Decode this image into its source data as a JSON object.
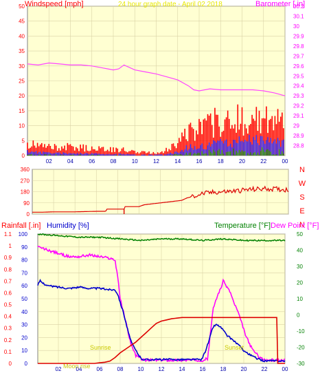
{
  "header": {
    "windspeed_label": "Windspeed [mph]",
    "title": "24 hour graph date - April 02 2018",
    "barometer_label": "Barometer [.in]"
  },
  "lower_header": {
    "rainfall_label": "Rainfall [.in]",
    "humidity_label": "Humidity [%]",
    "temperature_label": "Temperature [°F]",
    "dewpoint_label": "Dew Point [°F]"
  },
  "annotations": {
    "sunrise": "Sunrise",
    "moonrise": "Moon rise",
    "sunset": "Sunset"
  },
  "colors": {
    "background": "#ffffff",
    "plot_bg": "#ffffd2",
    "grid": "#d9d2a6",
    "wind": "#ff0000",
    "gust_blue": "#1010ff",
    "gust_green": "#008000",
    "barometer": "#ff44ff",
    "direction": "#dd0000",
    "rain": "#dd0000",
    "humidity": "#0000cc",
    "temperature": "#008000",
    "dewpoint": "#ff00ff",
    "axis_left": "#ff0000",
    "axis_right_magenta": "#ff00ff",
    "axis_right_green": "#008000",
    "xtick": "#0000aa",
    "title": "#e8e800"
  },
  "chart_data": [
    {
      "type": "line",
      "title": "24 hour graph date - April 02 2018",
      "xticks": [
        "02",
        "04",
        "06",
        "08",
        "10",
        "12",
        "14",
        "16",
        "18",
        "20",
        "22",
        "00"
      ],
      "left_axis": {
        "label": "Windspeed [mph]",
        "ylim": [
          0,
          50
        ],
        "ticks": [
          0,
          5,
          10,
          15,
          20,
          25,
          30,
          35,
          40,
          45,
          50
        ]
      },
      "right_axis": {
        "label": "Barometer [.in]",
        "ylim": [
          28.7,
          30.2
        ],
        "ticks": [
          "28.8",
          "28.9",
          "29",
          "29.1",
          "29.2",
          "29.3",
          "29.4",
          "29.5",
          "29.6",
          "29.7",
          "29.8",
          "29.9",
          "30",
          "30.1",
          "30.2"
        ]
      },
      "barometer": {
        "x": [
          0,
          1,
          2,
          3,
          4,
          5,
          6,
          7,
          7.5,
          8,
          8.5,
          9,
          10,
          11,
          12,
          13,
          14,
          15,
          15.5,
          16,
          17,
          18,
          19,
          20,
          21,
          22,
          23,
          24
        ],
        "y": [
          29.62,
          29.61,
          29.63,
          29.62,
          29.61,
          29.61,
          29.6,
          29.58,
          29.57,
          29.56,
          29.57,
          29.61,
          29.56,
          29.54,
          29.52,
          29.49,
          29.46,
          29.4,
          29.36,
          29.35,
          29.37,
          29.36,
          29.36,
          29.36,
          29.36,
          29.35,
          29.33,
          29.3
        ]
      },
      "wind_avg_profile": {
        "x": [
          0,
          2,
          4,
          6,
          7,
          8,
          9,
          10,
          11,
          12,
          13,
          14,
          15,
          16,
          17,
          18,
          19,
          20,
          21,
          22,
          23,
          24
        ],
        "y": [
          1.5,
          1,
          0.8,
          0.8,
          0.6,
          0.5,
          0.6,
          0.4,
          0.3,
          0.3,
          0.5,
          1.5,
          3,
          3.5,
          4,
          4.5,
          5,
          5,
          5.5,
          5.5,
          5,
          4.5
        ]
      },
      "wind_gust_profile": {
        "x": [
          0,
          2,
          4,
          6,
          7,
          8,
          9,
          10,
          11,
          12,
          13,
          14,
          15,
          16,
          17,
          18,
          19,
          20,
          21,
          22,
          23,
          24
        ],
        "y": [
          4,
          3,
          3,
          2.5,
          2.5,
          2,
          2,
          1.5,
          1,
          1,
          2,
          5,
          8,
          9,
          11,
          12,
          13,
          13,
          13,
          12,
          12,
          12
        ]
      }
    },
    {
      "type": "line",
      "title": "",
      "left_axis": {
        "ylim": [
          0,
          360
        ],
        "ticks": [
          0,
          90,
          180,
          270,
          360
        ]
      },
      "right_axis": {
        "ticks": [
          "N",
          "W",
          "S",
          "E",
          "N"
        ]
      },
      "direction": {
        "x": [
          0,
          1,
          2,
          4,
          6,
          6.8,
          6.9,
          7,
          8,
          8.6,
          8.7,
          9,
          10,
          10.5,
          11,
          12,
          13,
          14,
          14.5,
          15,
          16,
          17,
          18,
          19,
          20,
          21,
          22,
          23,
          24
        ],
        "y": [
          15,
          15,
          18,
          18,
          22,
          22,
          25,
          40,
          40,
          40,
          60,
          60,
          60,
          75,
          80,
          90,
          100,
          110,
          130,
          140,
          165,
          175,
          180,
          185,
          195,
          200,
          205,
          200,
          195
        ]
      }
    },
    {
      "type": "line",
      "title": "",
      "rain_axis": {
        "label": "Rainfall [.in]",
        "ylim": [
          0,
          1.1
        ],
        "ticks": [
          "0",
          "0.1",
          "0.2",
          "0.3",
          "0.4",
          "0.5",
          "0.6",
          "0.7",
          "0.8",
          "0.9",
          "1",
          "1.1"
        ]
      },
      "humidity_axis": {
        "label": "Humidity [%]",
        "ylim": [
          0,
          100
        ],
        "ticks": [
          0,
          10,
          20,
          30,
          40,
          50,
          60,
          70,
          80,
          90,
          100
        ]
      },
      "temp_axis": {
        "label": "Temperature [°F]",
        "ylim": [
          -30,
          50
        ],
        "ticks": [
          -30,
          -20,
          -10,
          0,
          10,
          20,
          30,
          40,
          50
        ]
      },
      "temperature": {
        "x": [
          0,
          2,
          4,
          6,
          8,
          10,
          12,
          14,
          16,
          18,
          20,
          22,
          24
        ],
        "y": [
          50,
          49,
          48,
          48,
          47,
          46,
          47,
          47,
          46,
          47,
          46,
          46,
          46
        ]
      },
      "dewpoint": {
        "x": [
          0,
          0.5,
          1,
          2,
          3,
          4,
          5,
          6,
          7,
          7.5,
          7.8,
          8,
          8.5,
          9,
          9.5,
          10,
          10.3,
          10.6,
          11,
          12,
          13,
          14,
          15,
          15.6,
          16,
          16.5,
          17,
          17.5,
          17.8,
          18,
          18.3,
          18.7,
          19,
          19.3,
          19.8,
          20.2,
          20.8,
          21.5,
          22,
          22.5,
          23,
          23.5,
          24
        ],
        "y": [
          42,
          41,
          40,
          38,
          36,
          36,
          37,
          36,
          35,
          34,
          22,
          10,
          -3,
          -17,
          -25,
          -27,
          -28,
          -28,
          -28,
          -28,
          -28,
          -28,
          -28,
          -28,
          -28,
          -27,
          3,
          13,
          17,
          21,
          18,
          14,
          8,
          4,
          -5,
          -13,
          -21,
          -26,
          -28,
          -28,
          -28,
          -28,
          -28
        ]
      },
      "humidity": {
        "x": [
          0,
          0.2,
          0.5,
          1,
          2,
          3,
          4,
          5,
          6,
          7,
          7.5,
          7.8,
          8,
          8.3,
          8.6,
          9,
          9.3,
          9.6,
          10,
          10.3,
          11,
          12,
          13,
          14,
          15,
          15.5,
          15.9,
          16.2,
          16.6,
          17,
          17.3,
          17.6,
          18,
          18.3,
          18.8,
          19.4,
          20,
          20.5,
          21,
          21.5,
          22,
          22.5,
          23,
          24
        ],
        "y": [
          60,
          64,
          62,
          60,
          59,
          58,
          59,
          58,
          58,
          57,
          57,
          53,
          47,
          40,
          30,
          18,
          13,
          9,
          4,
          3,
          3,
          3,
          3,
          3,
          3,
          3,
          3,
          8,
          17,
          28,
          30,
          29,
          26,
          22,
          19,
          15,
          10,
          7,
          5,
          3,
          2,
          2,
          2,
          2
        ]
      },
      "rainfall": {
        "x": [
          0,
          5.5,
          6,
          6.5,
          7,
          7.5,
          8,
          8.5,
          9,
          9.5,
          10,
          10.5,
          11,
          11.5,
          12,
          12.5,
          13,
          13.5,
          14,
          15,
          16,
          17,
          18,
          19,
          20,
          21,
          22,
          23,
          23.2,
          23.3,
          24
        ],
        "y": [
          0,
          0,
          0.005,
          0.01,
          0.02,
          0.05,
          0.09,
          0.12,
          0.15,
          0.18,
          0.22,
          0.26,
          0.3,
          0.34,
          0.36,
          0.37,
          0.38,
          0.385,
          0.39,
          0.39,
          0.39,
          0.39,
          0.39,
          0.39,
          0.39,
          0.39,
          0.39,
          0.39,
          0.39,
          0,
          0
        ]
      }
    }
  ]
}
